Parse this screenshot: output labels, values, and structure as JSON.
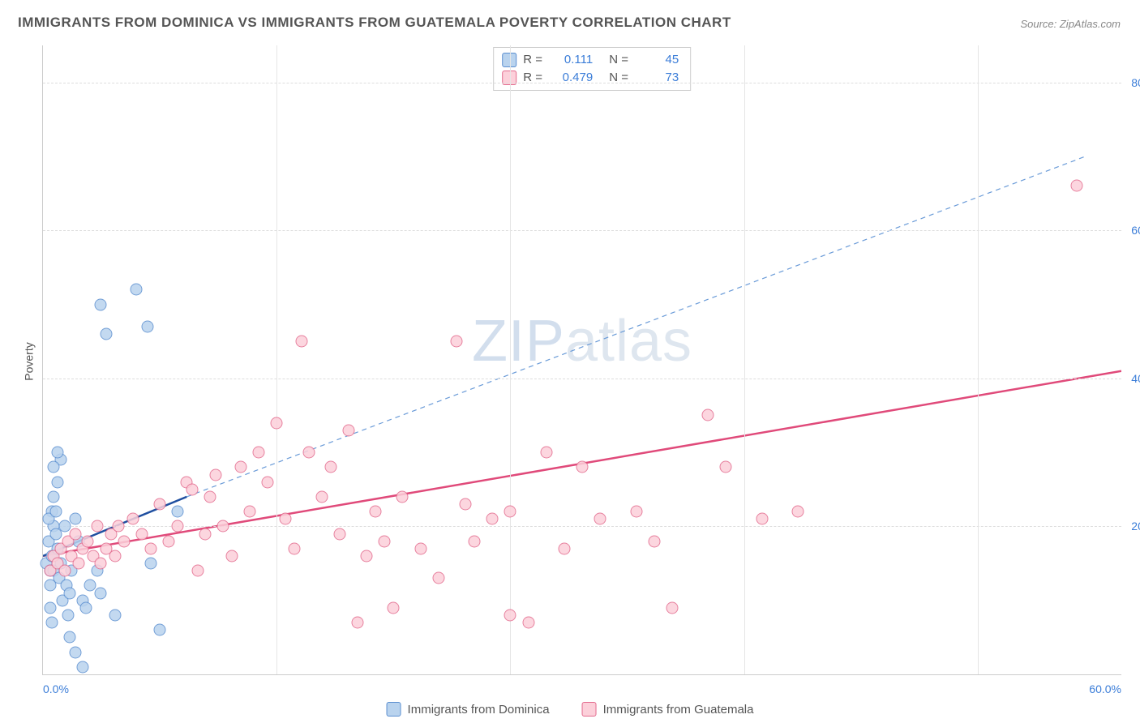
{
  "title": "IMMIGRANTS FROM DOMINICA VS IMMIGRANTS FROM GUATEMALA POVERTY CORRELATION CHART",
  "source": "Source: ZipAtlas.com",
  "ylabel": "Poverty",
  "watermark_a": "ZIP",
  "watermark_b": "atlas",
  "chart": {
    "type": "scatter",
    "xlim": [
      0,
      60
    ],
    "ylim": [
      0,
      85
    ],
    "xtick_labels": [
      "0.0%",
      "60.0%"
    ],
    "xtick_vals": [
      0,
      60
    ],
    "ytick_labels": [
      "20.0%",
      "40.0%",
      "60.0%",
      "80.0%"
    ],
    "ytick_vals": [
      20,
      40,
      60,
      80
    ],
    "xgrid_vals": [
      13,
      26,
      39,
      52
    ],
    "background_color": "#ffffff",
    "grid_color": "#dddddd",
    "axis_label_color": "#3b7dd8",
    "point_radius": 6.5,
    "point_border": 1
  },
  "series": [
    {
      "name": "Immigrants from Dominica",
      "fill": "#b9d3ee",
      "stroke": "#5b8fd0",
      "swatch_fill": "#b9d3ee",
      "swatch_border": "#5b8fd0",
      "r_label": "R =",
      "r_value": "0.111",
      "n_label": "N =",
      "n_value": "45",
      "trend": {
        "x1": 0,
        "y1": 16,
        "x2": 8,
        "y2": 24,
        "solid_color": "#1f4fa0",
        "solid_width": 2.5
      },
      "trend_ext": {
        "x1": 8,
        "y1": 24,
        "x2": 58,
        "y2": 70,
        "dash_color": "#6a9bd8",
        "dash_width": 1.2
      },
      "points": [
        [
          0.2,
          15
        ],
        [
          0.3,
          18
        ],
        [
          0.4,
          14
        ],
        [
          0.5,
          16
        ],
        [
          0.4,
          12
        ],
        [
          0.6,
          20
        ],
        [
          0.5,
          22
        ],
        [
          0.7,
          19
        ],
        [
          0.3,
          21
        ],
        [
          0.8,
          17
        ],
        [
          0.6,
          14
        ],
        [
          0.4,
          9
        ],
        [
          0.5,
          7
        ],
        [
          0.9,
          13
        ],
        [
          1.0,
          15
        ],
        [
          0.7,
          22
        ],
        [
          1.2,
          20
        ],
        [
          0.6,
          24
        ],
        [
          0.8,
          26
        ],
        [
          1.0,
          29
        ],
        [
          1.1,
          10
        ],
        [
          1.3,
          12
        ],
        [
          1.4,
          8
        ],
        [
          1.5,
          11
        ],
        [
          1.6,
          14
        ],
        [
          1.8,
          21
        ],
        [
          2.0,
          18
        ],
        [
          2.2,
          10
        ],
        [
          2.4,
          9
        ],
        [
          2.6,
          12
        ],
        [
          3.0,
          14
        ],
        [
          3.2,
          11
        ],
        [
          3.5,
          46
        ],
        [
          3.2,
          50
        ],
        [
          5.2,
          52
        ],
        [
          5.8,
          47
        ],
        [
          7.5,
          22
        ],
        [
          6.0,
          15
        ],
        [
          6.5,
          6
        ],
        [
          4.0,
          8
        ],
        [
          1.5,
          5
        ],
        [
          1.8,
          3
        ],
        [
          2.2,
          1
        ],
        [
          0.6,
          28
        ],
        [
          0.8,
          30
        ]
      ]
    },
    {
      "name": "Immigrants from Guatemala",
      "fill": "#fcd0da",
      "stroke": "#e36b8e",
      "swatch_fill": "#fcd0da",
      "swatch_border": "#e36b8e",
      "r_label": "R =",
      "r_value": "0.479",
      "n_label": "N =",
      "n_value": "73",
      "trend": {
        "x1": 0,
        "y1": 16,
        "x2": 60,
        "y2": 41,
        "solid_color": "#e04a7a",
        "solid_width": 2.5
      },
      "points": [
        [
          0.4,
          14
        ],
        [
          0.6,
          16
        ],
        [
          0.8,
          15
        ],
        [
          1.0,
          17
        ],
        [
          1.2,
          14
        ],
        [
          1.4,
          18
        ],
        [
          1.6,
          16
        ],
        [
          1.8,
          19
        ],
        [
          2.0,
          15
        ],
        [
          2.2,
          17
        ],
        [
          2.5,
          18
        ],
        [
          2.8,
          16
        ],
        [
          3.0,
          20
        ],
        [
          3.2,
          15
        ],
        [
          3.5,
          17
        ],
        [
          3.8,
          19
        ],
        [
          4.0,
          16
        ],
        [
          4.2,
          20
        ],
        [
          4.5,
          18
        ],
        [
          5.0,
          21
        ],
        [
          5.5,
          19
        ],
        [
          6.0,
          17
        ],
        [
          6.5,
          23
        ],
        [
          7.0,
          18
        ],
        [
          7.5,
          20
        ],
        [
          8.0,
          26
        ],
        [
          8.3,
          25
        ],
        [
          8.6,
          14
        ],
        [
          9.0,
          19
        ],
        [
          9.3,
          24
        ],
        [
          9.6,
          27
        ],
        [
          10.0,
          20
        ],
        [
          10.5,
          16
        ],
        [
          11.0,
          28
        ],
        [
          11.5,
          22
        ],
        [
          12.0,
          30
        ],
        [
          12.5,
          26
        ],
        [
          13.0,
          34
        ],
        [
          13.5,
          21
        ],
        [
          14.0,
          17
        ],
        [
          14.4,
          45
        ],
        [
          14.8,
          30
        ],
        [
          15.5,
          24
        ],
        [
          16.0,
          28
        ],
        [
          16.5,
          19
        ],
        [
          17.0,
          33
        ],
        [
          17.5,
          7
        ],
        [
          18.0,
          16
        ],
        [
          18.5,
          22
        ],
        [
          19.0,
          18
        ],
        [
          19.5,
          9
        ],
        [
          20.0,
          24
        ],
        [
          21.0,
          17
        ],
        [
          22.0,
          13
        ],
        [
          23.0,
          45
        ],
        [
          23.5,
          23
        ],
        [
          24.0,
          18
        ],
        [
          25.0,
          21
        ],
        [
          26.0,
          22
        ],
        [
          27.0,
          7
        ],
        [
          28.0,
          30
        ],
        [
          29.0,
          17
        ],
        [
          30.0,
          28
        ],
        [
          31.0,
          21
        ],
        [
          33.0,
          22
        ],
        [
          34.0,
          18
        ],
        [
          35.0,
          9
        ],
        [
          37.0,
          35
        ],
        [
          38.0,
          28
        ],
        [
          40.0,
          21
        ],
        [
          42.0,
          22
        ],
        [
          57.5,
          66
        ],
        [
          26.0,
          8
        ]
      ]
    }
  ],
  "legend": {
    "item1": "Immigrants from Dominica",
    "item2": "Immigrants from Guatemala"
  }
}
